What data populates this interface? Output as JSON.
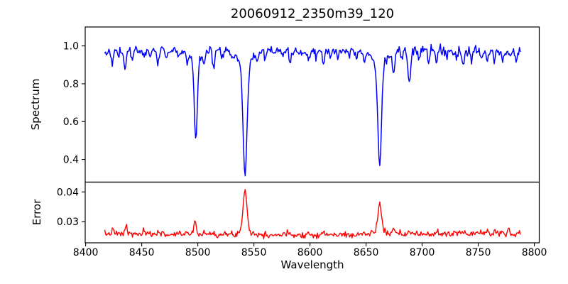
{
  "chart_data": [
    {
      "type": "line",
      "panel": "spectrum",
      "title": "20060912_2350m39_120",
      "ylabel": "Spectrum",
      "line_color": "#0000ff",
      "frame_color": "#000000",
      "grid": false,
      "legend": "none",
      "x_start": 8417.0,
      "x_end": 8787.5,
      "x_step": 0.75,
      "xlim": [
        8399.6,
        8804.4
      ],
      "ylim": [
        0.28,
        1.1
      ],
      "yticks": [
        {
          "v": 0.4,
          "label": "0.4"
        },
        {
          "v": 0.6,
          "label": "0.6"
        },
        {
          "v": 0.8,
          "label": "0.8"
        },
        {
          "v": 1.0,
          "label": "1.0"
        }
      ],
      "continuum_points": [
        [
          8417,
          0.97
        ],
        [
          8450,
          0.978
        ],
        [
          8500,
          0.975
        ],
        [
          8550,
          0.978
        ],
        [
          8600,
          0.975
        ],
        [
          8650,
          0.975
        ],
        [
          8700,
          0.972
        ],
        [
          8750,
          0.972
        ],
        [
          8787.5,
          0.97
        ]
      ],
      "noise_sigma_range": [
        0.01,
        0.014
      ],
      "absorption_features": [
        [
          8424.0,
          0.05,
          1.0
        ],
        [
          8429.0,
          0.03,
          0.8
        ],
        [
          8435.0,
          0.095,
          1.0
        ],
        [
          8441.5,
          0.05,
          0.9
        ],
        [
          8452.0,
          0.035,
          0.9
        ],
        [
          8458.0,
          0.03,
          0.8
        ],
        [
          8464.5,
          0.075,
          1.0
        ],
        [
          8472.0,
          0.035,
          0.8
        ],
        [
          8483.0,
          0.04,
          0.9
        ],
        [
          8490.5,
          0.06,
          0.9
        ],
        [
          8498.2,
          0.425,
          1.3,
          0.055,
          4.5
        ],
        [
          8505.5,
          0.045,
          0.9
        ],
        [
          8514.0,
          0.09,
          1.0
        ],
        [
          8521.5,
          0.04,
          0.8
        ],
        [
          8531.0,
          0.03,
          0.8
        ],
        [
          8542.1,
          0.575,
          1.7,
          0.09,
          6.0
        ],
        [
          8552.5,
          0.04,
          0.8
        ],
        [
          8560.0,
          0.045,
          0.9
        ],
        [
          8568.0,
          0.03,
          0.8
        ],
        [
          8575.5,
          0.035,
          0.8
        ],
        [
          8582.5,
          0.06,
          1.0
        ],
        [
          8590.0,
          0.03,
          0.8
        ],
        [
          8598.5,
          0.04,
          0.9
        ],
        [
          8605.0,
          0.03,
          0.8
        ],
        [
          8612.0,
          0.08,
          1.0
        ],
        [
          8618.5,
          0.04,
          0.8
        ],
        [
          8625.0,
          0.035,
          0.8
        ],
        [
          8634.0,
          0.03,
          0.8
        ],
        [
          8641.5,
          0.035,
          0.8
        ],
        [
          8648.5,
          0.055,
          0.9
        ],
        [
          8662.1,
          0.53,
          1.6,
          0.075,
          5.5
        ],
        [
          8674.5,
          0.115,
          1.0
        ],
        [
          8682.0,
          0.045,
          0.8
        ],
        [
          8688.5,
          0.165,
          1.1
        ],
        [
          8697.0,
          0.04,
          0.8
        ],
        [
          8705.5,
          0.04,
          0.8
        ],
        [
          8713.0,
          0.06,
          0.9
        ],
        [
          8722.0,
          0.045,
          0.8
        ],
        [
          8730.5,
          0.04,
          0.8
        ],
        [
          8736.5,
          0.065,
          0.9
        ],
        [
          8744.0,
          0.04,
          0.8
        ],
        [
          8752.5,
          0.05,
          0.9
        ],
        [
          8758.0,
          0.04,
          0.8
        ],
        [
          8764.5,
          0.055,
          0.9
        ],
        [
          8772.0,
          0.055,
          0.9
        ],
        [
          8778.5,
          0.04,
          0.8
        ],
        [
          8784.0,
          0.04,
          0.8
        ]
      ],
      "deep_line_minima": [
        {
          "wavelength": 8498,
          "min_flux": 0.5
        },
        {
          "wavelength": 8542,
          "min_flux": 0.32
        },
        {
          "wavelength": 8662,
          "min_flux": 0.37
        }
      ]
    },
    {
      "type": "line",
      "panel": "error",
      "ylabel": "Error",
      "xlabel": "Wavelength",
      "line_color": "#ff0000",
      "frame_color": "#000000",
      "grid": false,
      "legend": "none",
      "x_start": 8417.0,
      "x_end": 8787.5,
      "x_step": 0.75,
      "xlim": [
        8399.6,
        8804.4
      ],
      "ylim": [
        0.0229,
        0.0433
      ],
      "yticks": [
        {
          "v": 0.03,
          "label": "0.03"
        },
        {
          "v": 0.04,
          "label": "0.04"
        }
      ],
      "xticks": [
        {
          "v": 8400,
          "label": "8400"
        },
        {
          "v": 8450,
          "label": "8450"
        },
        {
          "v": 8500,
          "label": "8500"
        },
        {
          "v": 8550,
          "label": "8550"
        },
        {
          "v": 8600,
          "label": "8600"
        },
        {
          "v": 8650,
          "label": "8650"
        },
        {
          "v": 8700,
          "label": "8700"
        },
        {
          "v": 8750,
          "label": "8750"
        },
        {
          "v": 8800,
          "label": "8800"
        }
      ],
      "baseline_points": [
        [
          8417,
          0.0259
        ],
        [
          8480,
          0.0257
        ],
        [
          8560,
          0.0256
        ],
        [
          8640,
          0.0256
        ],
        [
          8700,
          0.0258
        ],
        [
          8755,
          0.0261
        ],
        [
          8787.5,
          0.0258
        ]
      ],
      "noise_sigma": 0.0005,
      "peak_features": [
        [
          8424.0,
          0.0013,
          1.0
        ],
        [
          8436.0,
          0.003,
          0.9
        ],
        [
          8452.0,
          0.0008,
          0.8
        ],
        [
          8465.0,
          0.0016,
          0.9
        ],
        [
          8483.0,
          0.0009,
          0.8
        ],
        [
          8490.0,
          0.0012,
          0.8
        ],
        [
          8497.5,
          0.005,
          1.1
        ],
        [
          8506.0,
          0.0012,
          0.8
        ],
        [
          8514.0,
          0.0012,
          0.9
        ],
        [
          8542.1,
          0.0143,
          1.7,
          0.0012,
          5.0
        ],
        [
          8560.0,
          0.0007,
          0.8
        ],
        [
          8582.0,
          0.0008,
          0.9
        ],
        [
          8598.0,
          0.0006,
          0.8
        ],
        [
          8612.0,
          0.0009,
          0.9
        ],
        [
          8648.0,
          0.0007,
          0.8
        ],
        [
          8662.1,
          0.0088,
          1.7,
          0.0012,
          5.0
        ],
        [
          8674.5,
          0.0018,
          0.9
        ],
        [
          8688.5,
          0.0013,
          0.9
        ],
        [
          8713.0,
          0.0008,
          0.8
        ],
        [
          8736.0,
          0.0009,
          0.8
        ],
        [
          8752.0,
          0.0007,
          0.8
        ],
        [
          8758.0,
          0.0012,
          0.8
        ],
        [
          8765.0,
          0.0014,
          0.8
        ],
        [
          8771.0,
          0.001,
          0.8
        ],
        [
          8777.0,
          0.002,
          0.8
        ]
      ],
      "peak_maxima": [
        {
          "wavelength": 8498,
          "max_error": 0.031
        },
        {
          "wavelength": 8542,
          "max_error": 0.0415
        },
        {
          "wavelength": 8662,
          "max_error": 0.036
        }
      ]
    }
  ]
}
